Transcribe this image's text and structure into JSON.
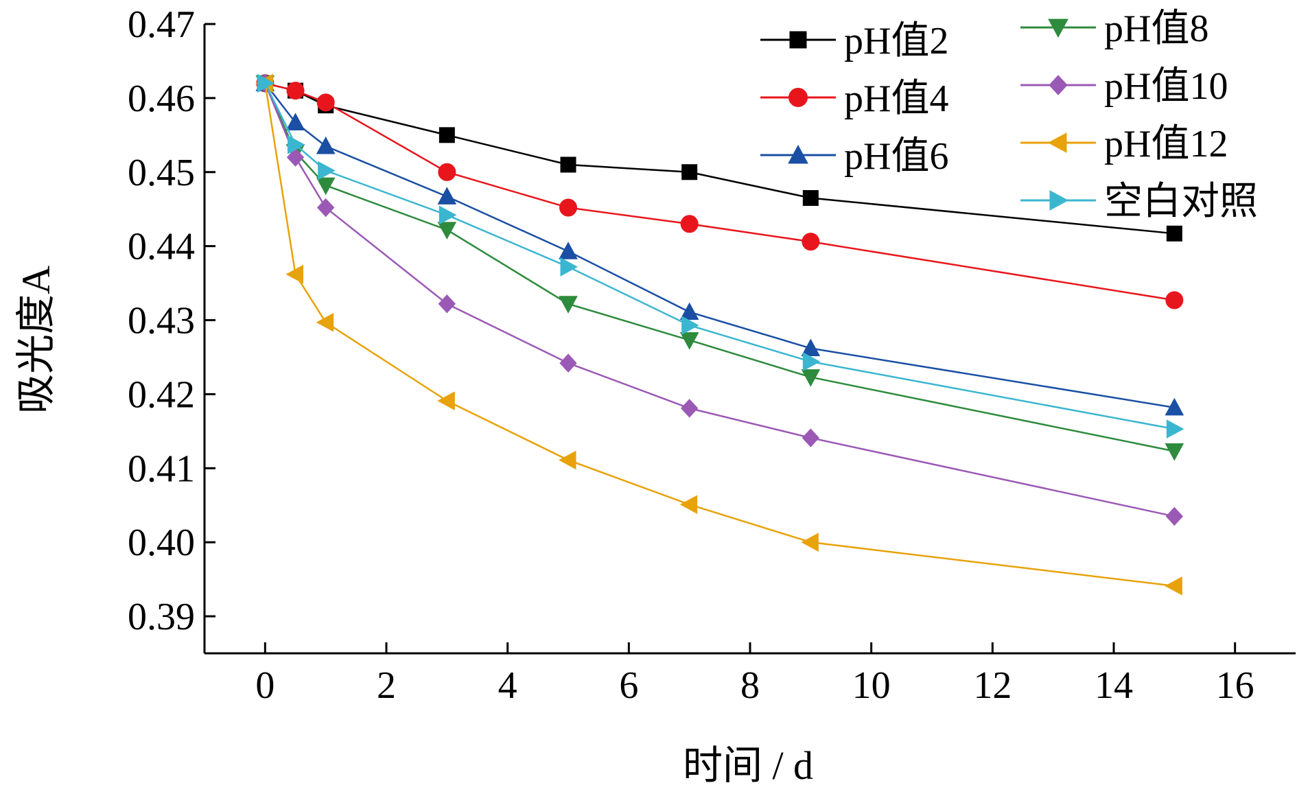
{
  "chart_data": {
    "type": "line",
    "xlabel": "时间 / d",
    "ylabel": "吸光度A",
    "xlim": [
      -1,
      17
    ],
    "ylim": [
      0.385,
      0.47
    ],
    "x_ticks": [
      "0",
      "2",
      "4",
      "6",
      "8",
      "10",
      "12",
      "14",
      "16"
    ],
    "y_ticks": [
      "0.47",
      "0.46",
      "0.45",
      "0.44",
      "0.43",
      "0.42",
      "0.41",
      "0.40",
      "0.39"
    ],
    "grid": false,
    "legend_position": "top-right",
    "x": [
      0,
      0.5,
      1,
      3,
      5,
      7,
      9,
      15
    ],
    "series": [
      {
        "name": "pH值2",
        "color": "#000000",
        "marker": "square",
        "values": [
          0.462,
          0.461,
          0.459,
          0.455,
          0.451,
          0.45,
          0.4465,
          0.4417
        ]
      },
      {
        "name": "pH值4",
        "color": "#e8161c",
        "marker": "circle",
        "values": [
          0.462,
          0.461,
          0.4594,
          0.45,
          0.4452,
          0.443,
          0.4406,
          0.4327
        ]
      },
      {
        "name": "pH值6",
        "color": "#1a4fa3",
        "marker": "triangle-up",
        "values": [
          0.462,
          0.4567,
          0.4535,
          0.4467,
          0.4393,
          0.4311,
          0.4262,
          0.4182
        ]
      },
      {
        "name": "pH值8",
        "color": "#2e8b3d",
        "marker": "triangle-down",
        "values": [
          0.462,
          0.4527,
          0.4482,
          0.4422,
          0.4322,
          0.4273,
          0.4223,
          0.4123
        ]
      },
      {
        "name": "pH值10",
        "color": "#9b59b6",
        "marker": "diamond",
        "values": [
          0.462,
          0.452,
          0.4452,
          0.4322,
          0.4242,
          0.4181,
          0.4141,
          0.4035
        ]
      },
      {
        "name": "pH值12",
        "color": "#e8a20a",
        "marker": "triangle-left",
        "values": [
          0.462,
          0.4362,
          0.4297,
          0.4191,
          0.4111,
          0.4051,
          0.4,
          0.3941
        ]
      },
      {
        "name": "空白对照",
        "color": "#3bb6d0",
        "marker": "triangle-right",
        "values": [
          0.462,
          0.4537,
          0.4502,
          0.4442,
          0.4372,
          0.4293,
          0.4244,
          0.4153
        ]
      }
    ]
  }
}
